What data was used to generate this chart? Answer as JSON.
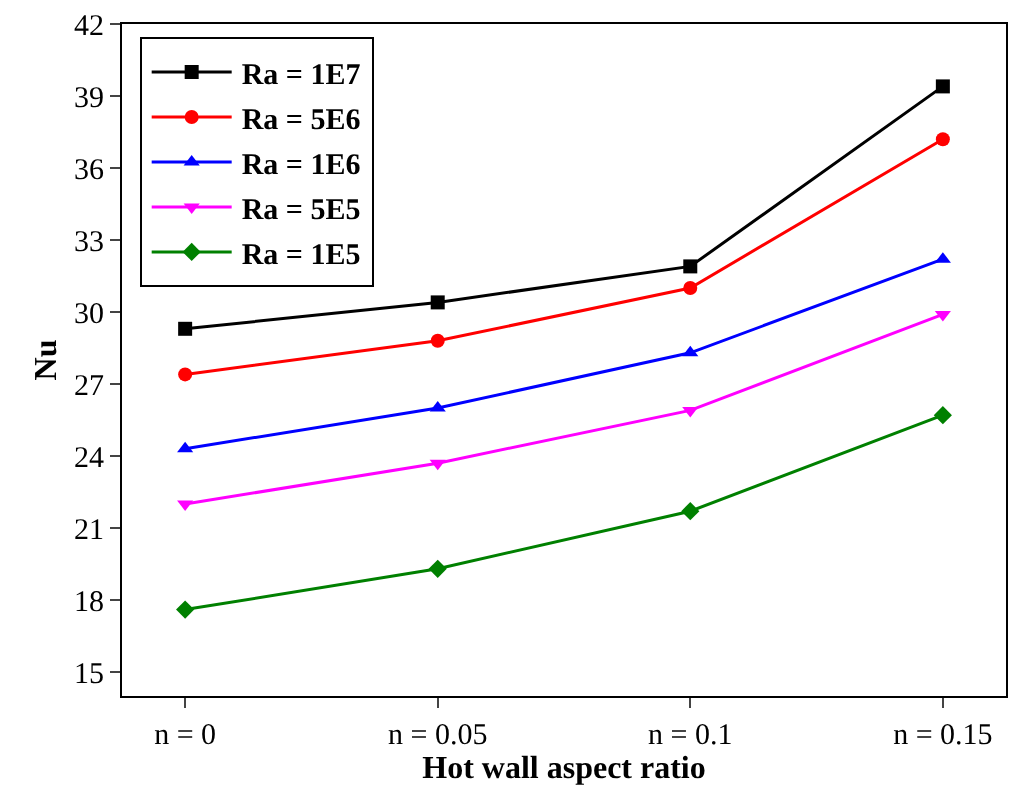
{
  "chart_data": {
    "type": "line",
    "xlabel": "Hot wall aspect ratio",
    "ylabel": "Nu",
    "categories": [
      "n = 0",
      "n = 0.05",
      "n = 0.1",
      "n = 0.15"
    ],
    "series": [
      {
        "name": "Ra = 1E7",
        "color": "#000000",
        "marker": "square",
        "values": [
          29.3,
          30.4,
          31.9,
          39.4
        ]
      },
      {
        "name": "Ra = 5E6",
        "color": "#ff0000",
        "marker": "circle",
        "values": [
          27.4,
          28.8,
          31.0,
          37.2
        ]
      },
      {
        "name": "Ra = 1E6",
        "color": "#0000ff",
        "marker": "triangle",
        "values": [
          24.3,
          26.0,
          28.3,
          32.2
        ]
      },
      {
        "name": "Ra = 5E5",
        "color": "#ff00ff",
        "marker": "triangle-down",
        "values": [
          22.0,
          23.7,
          25.9,
          29.9
        ]
      },
      {
        "name": "Ra = 1E5",
        "color": "#008000",
        "marker": "diamond",
        "values": [
          17.6,
          19.3,
          21.7,
          25.7
        ]
      }
    ],
    "ylim": [
      14,
      42
    ],
    "yticks": [
      15,
      18,
      21,
      24,
      27,
      30,
      33,
      36,
      39,
      42
    ],
    "legend": "top left",
    "line_style": "solid"
  }
}
